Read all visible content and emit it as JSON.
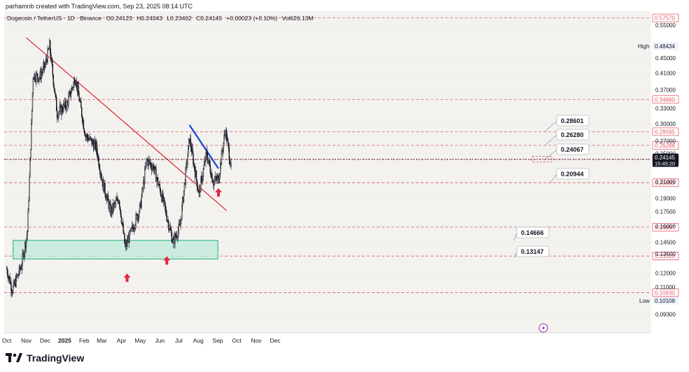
{
  "header": {
    "created_by": "parhamnb created with TradingView.com, Sep 23, 2025 08:14 UTC"
  },
  "legend": {
    "symbol": "Dogecoin / TetherUS · 1D · Binance",
    "open": "O0.24123",
    "high": "H0.24343",
    "low": "L0.23402",
    "close": "C0.24145",
    "change": "+0.00023 (+0.10%)",
    "volume": "Vol626.13M"
  },
  "brand": {
    "name": "TradingView"
  },
  "colors": {
    "candle": "#131722",
    "trendline": "#e0222f",
    "channel": "#1a4fd6",
    "support_fill": "#bfead9",
    "support_stroke": "#3dbd93",
    "level_line": "#e05a66",
    "arrow": "#e5283a",
    "current_price": "#131722"
  },
  "chart_data": {
    "type": "candlestick",
    "title": "Dogecoin / TetherUS · 1D · Binance",
    "x_labels": [
      "Oct",
      "Nov",
      "Dec",
      "2025",
      "Feb",
      "Mar",
      "Apr",
      "May",
      "Jun",
      "Jul",
      "Aug",
      "Sep",
      "Oct",
      "Nov",
      "Dec"
    ],
    "y_ticks": [
      "0.55000",
      "0.45000",
      "0.41000",
      "0.37000",
      "0.33000",
      "0.30000",
      "0.27000",
      "0.25000",
      "0.21000",
      "0.19000",
      "0.17500",
      "0.16000",
      "0.14500",
      "0.13500",
      "0.12000",
      "0.11000",
      "0.09300"
    ],
    "y_range": [
      0.083,
      0.6
    ],
    "y_scale": "log",
    "red_levels": [
      "0.57570",
      "0.34860",
      "0.28595",
      "0.26288",
      "0.24082",
      "0.20893",
      "0.15897",
      "0.13310",
      "0.10630"
    ],
    "high_label": "High",
    "high_value": "0.48434",
    "low_label": "Low",
    "low_value": "0.10108",
    "current_price": "0.24145",
    "countdown": "15:45:20",
    "annotations": [
      "0.28601",
      "0.26280",
      "0.24067",
      "0.20944",
      "0.14666",
      "0.13147"
    ],
    "support_zone": [
      0.1307,
      0.1466
    ],
    "trendline": [
      [
        "2024-11-01",
        0.51
      ],
      [
        "2025-09-15",
        0.176
      ]
    ],
    "channel_line": [
      [
        "2025-07-18",
        0.298
      ],
      [
        "2025-09-02",
        0.228
      ]
    ],
    "price_path": [
      [
        "2024-10-01",
        0.123
      ],
      [
        "2024-10-10",
        0.108
      ],
      [
        "2024-10-24",
        0.125
      ],
      [
        "2024-11-03",
        0.155
      ],
      [
        "2024-11-12",
        0.405
      ],
      [
        "2024-11-22",
        0.4
      ],
      [
        "2024-12-01",
        0.43
      ],
      [
        "2024-12-08",
        0.48434
      ],
      [
        "2024-12-20",
        0.32
      ],
      [
        "2025-01-05",
        0.34
      ],
      [
        "2025-01-18",
        0.4
      ],
      [
        "2025-02-03",
        0.28
      ],
      [
        "2025-02-20",
        0.26
      ],
      [
        "2025-03-02",
        0.21
      ],
      [
        "2025-03-15",
        0.175
      ],
      [
        "2025-03-28",
        0.19
      ],
      [
        "2025-04-07",
        0.14
      ],
      [
        "2025-04-20",
        0.16
      ],
      [
        "2025-05-01",
        0.18
      ],
      [
        "2025-05-11",
        0.24
      ],
      [
        "2025-05-22",
        0.23
      ],
      [
        "2025-06-05",
        0.19
      ],
      [
        "2025-06-22",
        0.145
      ],
      [
        "2025-07-03",
        0.16
      ],
      [
        "2025-07-18",
        0.275
      ],
      [
        "2025-08-02",
        0.195
      ],
      [
        "2025-08-14",
        0.25
      ],
      [
        "2025-08-25",
        0.21
      ],
      [
        "2025-09-02",
        0.215
      ],
      [
        "2025-09-13",
        0.29
      ],
      [
        "2025-09-22",
        0.23
      ]
    ],
    "markers": [
      {
        "date": "2025-04-10",
        "price": 0.116,
        "icon": "up-arrow-icon"
      },
      {
        "date": "2025-06-12",
        "price": 0.129,
        "icon": "up-arrow-icon"
      },
      {
        "date": "2025-09-02",
        "price": 0.196,
        "icon": "up-arrow-icon"
      }
    ]
  }
}
